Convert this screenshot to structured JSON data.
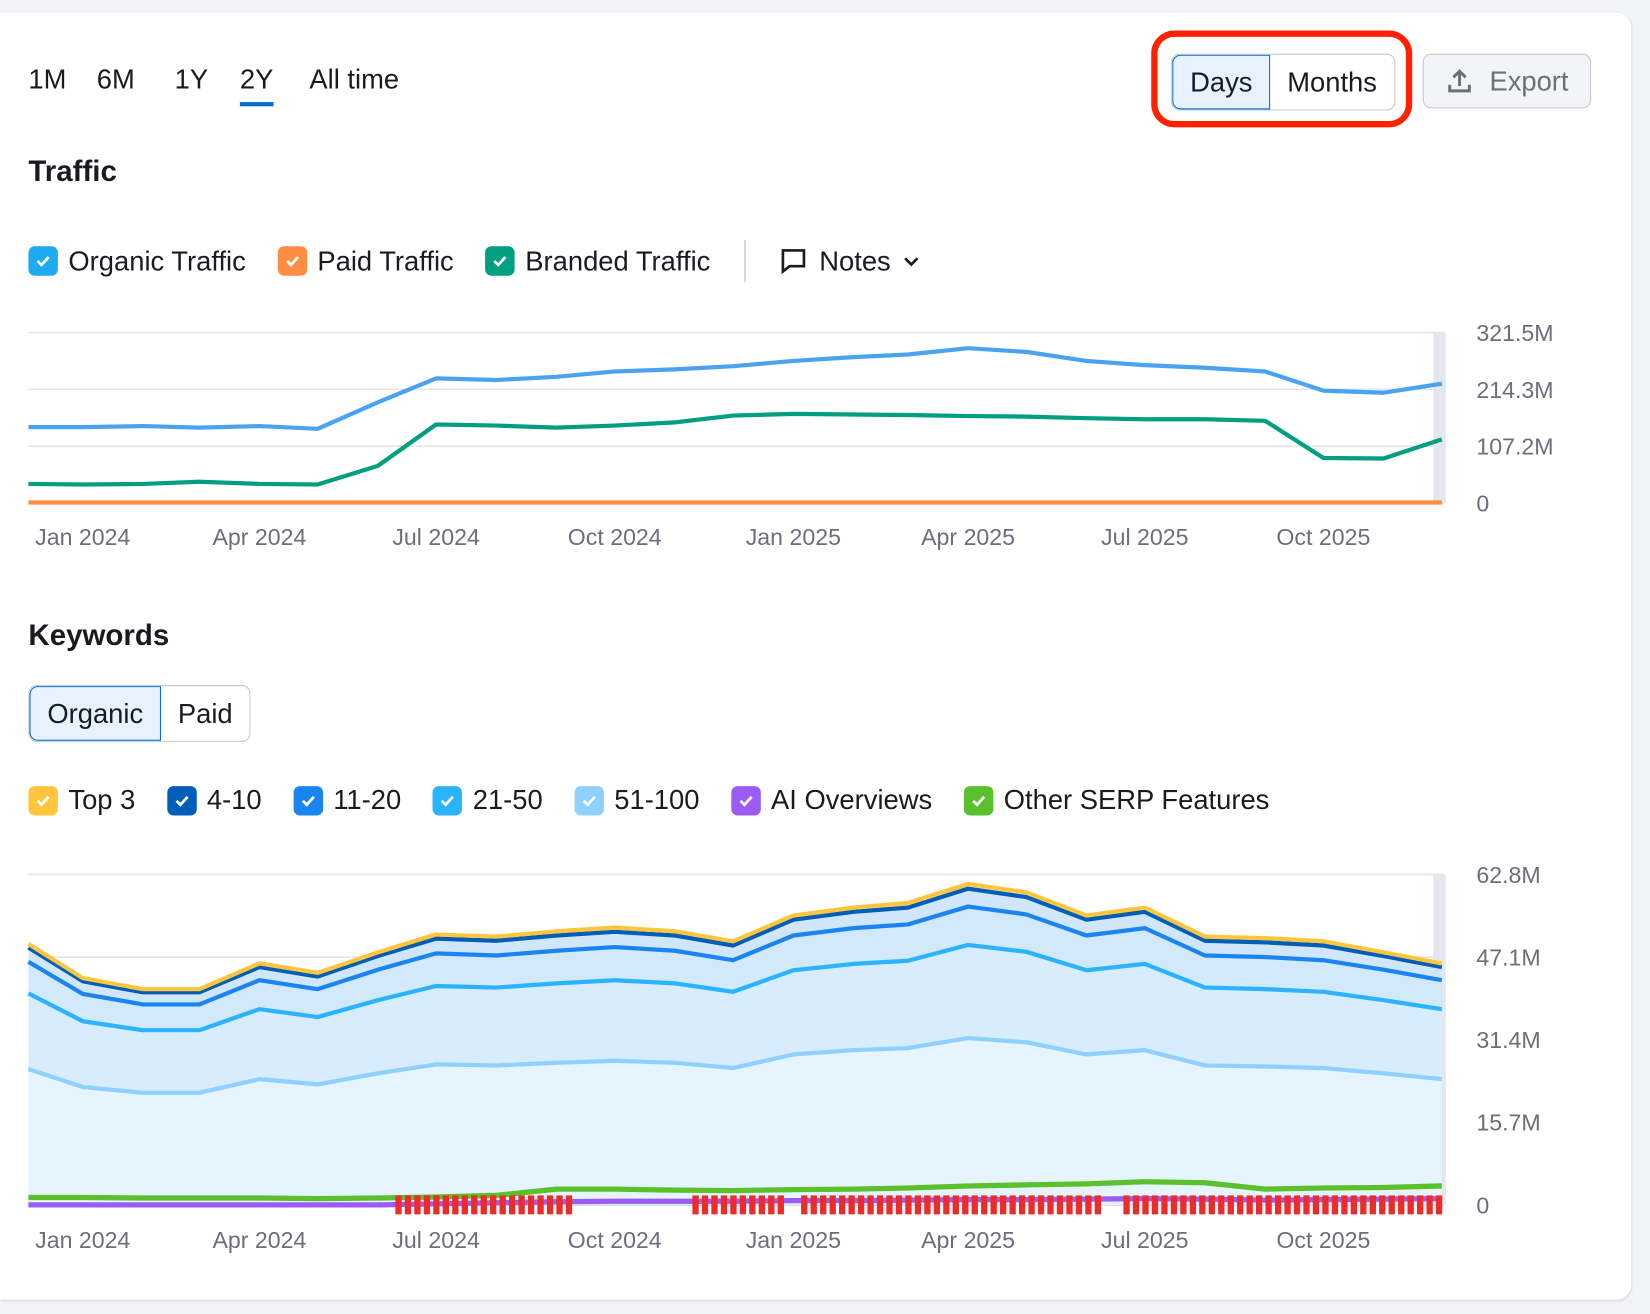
{
  "time_ranges": [
    {
      "label": "1M"
    },
    {
      "label": "6M"
    },
    {
      "label": "1Y"
    },
    {
      "label": "2Y",
      "active": true
    },
    {
      "label": "All time"
    }
  ],
  "granularity": {
    "options": [
      "Days",
      "Months"
    ],
    "selected": "Days"
  },
  "export_label": "Export",
  "traffic": {
    "title": "Traffic",
    "legend": [
      {
        "label": "Organic Traffic",
        "color": "#1eaaf1"
      },
      {
        "label": "Paid Traffic",
        "color": "#ff8c43"
      },
      {
        "label": "Branded Traffic",
        "color": "#009f81"
      }
    ],
    "notes_label": "Notes"
  },
  "keywords": {
    "title": "Keywords",
    "tabs": [
      "Organic",
      "Paid"
    ],
    "active_tab": "Organic",
    "legend": [
      {
        "label": "Top 3",
        "color": "#ffc53d"
      },
      {
        "label": "4-10",
        "color": "#005eb8"
      },
      {
        "label": "11-20",
        "color": "#1a85f0"
      },
      {
        "label": "21-50",
        "color": "#2bb3ff"
      },
      {
        "label": "51-100",
        "color": "#8fd0ff"
      },
      {
        "label": "AI Overviews",
        "color": "#9d5bf5"
      },
      {
        "label": "Other SERP Features",
        "color": "#5ac02c"
      }
    ]
  },
  "chart_data": [
    {
      "type": "line",
      "x": [
        "2023-12-04",
        "2024-01-01",
        "2024-02-01",
        "2024-03-01",
        "2024-04-01",
        "2024-05-01",
        "2024-06-01",
        "2024-07-01",
        "2024-08-01",
        "2024-09-01",
        "2024-10-01",
        "2024-11-01",
        "2024-12-01",
        "2025-01-01",
        "2025-02-01",
        "2025-03-01",
        "2025-04-01",
        "2025-05-01",
        "2025-06-01",
        "2025-07-01",
        "2025-08-01",
        "2025-09-01",
        "2025-10-01",
        "2025-11-01",
        "2025-12-01"
      ],
      "x_ticks": [
        "Jan 2024",
        "Apr 2024",
        "Jul 2024",
        "Oct 2024",
        "Jan 2025",
        "Apr 2025",
        "Jul 2025",
        "Oct 2025"
      ],
      "y_ticks": [
        "0",
        "107.2M",
        "214.3M",
        "321.5M"
      ],
      "ylim": [
        0,
        321.5
      ],
      "y_unit": "M",
      "grid": true,
      "series": [
        {
          "name": "Organic Traffic",
          "color": "#4aa3f0",
          "values": [
            143,
            143,
            145,
            142,
            145,
            140,
            190,
            235,
            232,
            238,
            248,
            252,
            258,
            268,
            275,
            280,
            292,
            285,
            268,
            260,
            255,
            248,
            212,
            208,
            225
          ]
        },
        {
          "name": "Branded Traffic",
          "color": "#009f81",
          "values": [
            36,
            35,
            36,
            40,
            36,
            35,
            70,
            148,
            146,
            142,
            146,
            152,
            165,
            168,
            167,
            166,
            164,
            163,
            160,
            158,
            158,
            155,
            85,
            84,
            120
          ]
        },
        {
          "name": "Paid Traffic",
          "color": "#ff8c43",
          "values": [
            1,
            1,
            1,
            1,
            1,
            1,
            1,
            1,
            1,
            1,
            1,
            1,
            1,
            1,
            1,
            1,
            1,
            1,
            1,
            1,
            1,
            1,
            1,
            1,
            1
          ]
        }
      ]
    },
    {
      "type": "area",
      "stacked": true,
      "x": [
        "2023-12-04",
        "2024-01-01",
        "2024-02-01",
        "2024-03-01",
        "2024-04-01",
        "2024-05-01",
        "2024-06-01",
        "2024-07-01",
        "2024-08-01",
        "2024-09-01",
        "2024-10-01",
        "2024-11-01",
        "2024-12-01",
        "2025-01-01",
        "2025-02-01",
        "2025-03-01",
        "2025-04-01",
        "2025-05-01",
        "2025-06-01",
        "2025-07-01",
        "2025-08-01",
        "2025-09-01",
        "2025-10-01",
        "2025-11-01",
        "2025-12-01"
      ],
      "x_ticks": [
        "Jan 2024",
        "Apr 2024",
        "Jul 2024",
        "Oct 2024",
        "Jan 2025",
        "Apr 2025",
        "Jul 2025",
        "Oct 2025"
      ],
      "y_ticks": [
        "0",
        "15.7M",
        "31.4M",
        "47.1M",
        "62.8M"
      ],
      "ylim": [
        0,
        62.8
      ],
      "y_unit": "M",
      "grid": true,
      "series": [
        {
          "name": "51-100",
          "color": "#8fd0ff",
          "values": [
            25.8,
            22.4,
            21.3,
            21.3,
            23.9,
            22.9,
            25.0,
            26.7,
            26.5,
            27.0,
            27.4,
            27.0,
            26.0,
            28.6,
            29.4,
            29.8,
            31.7,
            30.9,
            28.6,
            29.4,
            26.5,
            26.3,
            26.0,
            25.0,
            23.9
          ]
        },
        {
          "name": "21-50",
          "color": "#2bb3ff",
          "values": [
            14.4,
            12.5,
            11.9,
            11.9,
            13.3,
            12.8,
            13.9,
            14.9,
            14.8,
            15.1,
            15.3,
            15.1,
            14.5,
            16.0,
            16.4,
            16.6,
            17.7,
            17.2,
            16.0,
            16.4,
            14.8,
            14.7,
            14.5,
            13.9,
            13.3
          ]
        },
        {
          "name": "11-20",
          "color": "#1a85f0",
          "values": [
            6.0,
            5.2,
            4.9,
            4.9,
            5.5,
            5.3,
            5.8,
            6.2,
            6.1,
            6.2,
            6.3,
            6.2,
            6.0,
            6.6,
            6.8,
            6.9,
            7.3,
            7.1,
            6.6,
            6.8,
            6.1,
            6.1,
            6.0,
            5.8,
            5.5
          ]
        },
        {
          "name": "4-10",
          "color": "#005eb8",
          "values": [
            2.7,
            2.4,
            2.3,
            2.3,
            2.5,
            2.4,
            2.6,
            2.8,
            2.8,
            2.9,
            2.9,
            2.9,
            2.8,
            3.0,
            3.1,
            3.2,
            3.4,
            3.3,
            3.0,
            3.1,
            2.8,
            2.8,
            2.8,
            2.6,
            2.5
          ]
        },
        {
          "name": "Top 3",
          "color": "#ffc53d",
          "values": [
            0.7,
            0.6,
            0.6,
            0.6,
            0.7,
            0.7,
            0.7,
            0.8,
            0.8,
            0.8,
            0.8,
            0.8,
            0.8,
            0.8,
            0.8,
            0.9,
            0.9,
            0.9,
            0.8,
            0.8,
            0.8,
            0.8,
            0.8,
            0.7,
            0.7
          ]
        }
      ],
      "overlay_series": [
        {
          "name": "Other SERP Features",
          "color": "#5ac02c",
          "values": [
            1.4,
            1.4,
            1.3,
            1.3,
            1.3,
            1.2,
            1.3,
            1.5,
            1.8,
            3.0,
            3.0,
            2.8,
            2.7,
            2.9,
            3.0,
            3.2,
            3.6,
            3.8,
            4.0,
            4.4,
            4.2,
            3.0,
            3.2,
            3.3,
            3.6
          ]
        },
        {
          "name": "AI Overviews",
          "color": "#9d5bf5",
          "values": [
            0,
            0,
            0,
            0,
            0,
            0,
            0,
            0.2,
            0.4,
            0.6,
            0.7,
            0.7,
            0.7,
            0.8,
            0.8,
            0.9,
            1.0,
            1.0,
            1.1,
            1.2,
            1.1,
            0.9,
            1.0,
            1.1,
            1.2
          ]
        }
      ],
      "note_marker_ranges": [
        [
          "2024-06-10",
          "2024-09-10"
        ],
        [
          "2024-11-10",
          "2024-12-28"
        ],
        [
          "2025-01-05",
          "2025-06-10"
        ],
        [
          "2025-06-20",
          "2025-12-02"
        ]
      ]
    }
  ]
}
